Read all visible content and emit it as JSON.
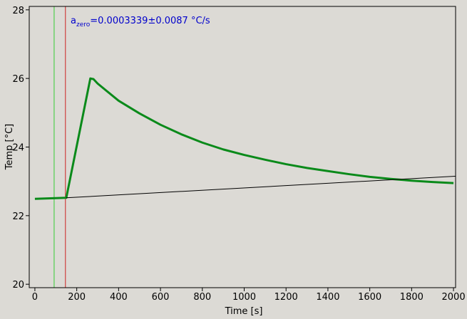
{
  "chart_data": {
    "type": "line",
    "xlabel": "Time [s]",
    "ylabel": "Temp [°C]",
    "annotation": {
      "text": "a",
      "subscript": "zero",
      "suffix": "=0.0003339±0.0087 °C/s",
      "color": "#0000cc"
    },
    "xlim": [
      -27,
      2010
    ],
    "ylim": [
      19.9,
      28.1
    ],
    "xticks": [
      0,
      200,
      400,
      600,
      800,
      1000,
      1200,
      1400,
      1600,
      1800,
      2000
    ],
    "yticks": [
      20,
      22,
      24,
      26,
      28
    ],
    "vlines": [
      {
        "x": 92,
        "color": "#33cc33"
      },
      {
        "x": 146,
        "color": "#cc2222"
      }
    ],
    "series": [
      {
        "color": "#0a8a1a",
        "width": 3,
        "x": [
          0,
          150,
          265,
          280,
          300,
          400,
          500,
          600,
          700,
          800,
          900,
          1000,
          1100,
          1200,
          1300,
          1400,
          1500,
          1600,
          1700,
          1800,
          1900,
          2000
        ],
        "values": [
          22.49,
          22.52,
          26.0,
          25.98,
          25.85,
          25.35,
          24.98,
          24.65,
          24.37,
          24.13,
          23.93,
          23.77,
          23.63,
          23.5,
          23.39,
          23.3,
          23.21,
          23.13,
          23.07,
          23.02,
          22.98,
          22.95
        ]
      },
      {
        "color": "#000000",
        "width": 1,
        "x": [
          150,
          2010
        ],
        "values": [
          22.52,
          23.15
        ]
      }
    ]
  }
}
